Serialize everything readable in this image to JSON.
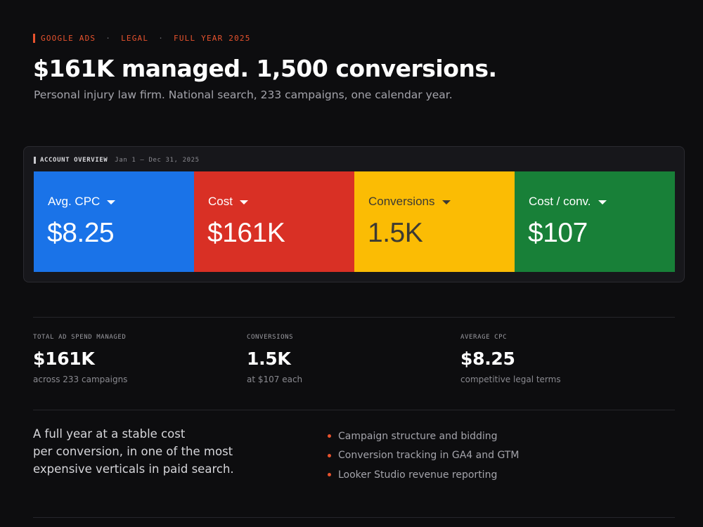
{
  "eyebrow": {
    "items": [
      "GOOGLE ADS",
      "LEGAL",
      "FULL YEAR 2025"
    ],
    "separator": "·",
    "accent_color": "#e8532e"
  },
  "headline": "$161K managed. 1,500 conversions.",
  "subhead": "Personal injury law firm. National search, 233 campaigns, one calendar year.",
  "overview": {
    "title": "ACCOUNT OVERVIEW",
    "date_range": "Jan 1 – Dec 31, 2025",
    "tiles": [
      {
        "label": "Avg. CPC",
        "value": "$8.25",
        "color": "#1a73e8",
        "icon": "caret-down-icon"
      },
      {
        "label": "Cost",
        "value": "$161K",
        "color": "#d93025",
        "icon": "caret-down-icon"
      },
      {
        "label": "Conversions",
        "value": "1.5K",
        "color": "#fbbc04",
        "icon": "caret-down-icon"
      },
      {
        "label": "Cost / conv.",
        "value": "$107",
        "color": "#188038",
        "icon": "caret-down-icon"
      }
    ]
  },
  "stats": [
    {
      "label": "TOTAL AD SPEND MANAGED",
      "value": "$161K",
      "detail": "across 233 campaigns"
    },
    {
      "label": "CONVERSIONS",
      "value": "1.5K",
      "detail": "at $107 each"
    },
    {
      "label": "AVERAGE CPC",
      "value": "$8.25",
      "detail": "competitive legal terms"
    }
  ],
  "summary": {
    "lines": [
      "A full year at a stable cost",
      "per conversion, in one of the most",
      "expensive verticals in paid search."
    ]
  },
  "bullets": [
    "Campaign structure and bidding",
    "Conversion tracking in GA4 and GTM",
    "Looker Studio revenue reporting"
  ]
}
